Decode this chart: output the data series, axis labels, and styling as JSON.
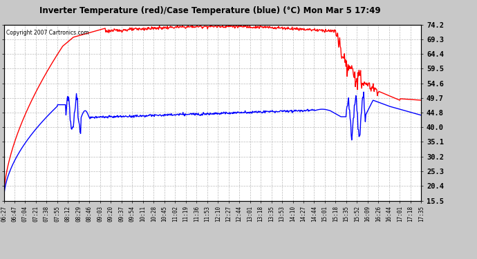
{
  "title": "Inverter Temperature (red)/Case Temperature (blue) (°C) Mon Mar 5 17:49",
  "copyright": "Copyright 2007 Cartronics.com",
  "yticks": [
    15.5,
    20.4,
    25.3,
    30.2,
    35.1,
    40.0,
    44.8,
    49.7,
    54.6,
    59.5,
    64.4,
    69.3,
    74.2
  ],
  "ylim": [
    15.5,
    74.2
  ],
  "xtick_labels": [
    "06:27",
    "06:47",
    "07:04",
    "07:21",
    "07:38",
    "07:55",
    "08:12",
    "08:29",
    "08:46",
    "09:03",
    "09:20",
    "09:37",
    "09:54",
    "10:11",
    "10:28",
    "10:45",
    "11:02",
    "11:19",
    "11:36",
    "11:53",
    "12:10",
    "12:27",
    "12:44",
    "13:01",
    "13:18",
    "13:35",
    "13:53",
    "14:10",
    "14:27",
    "14:44",
    "15:01",
    "15:18",
    "15:35",
    "15:52",
    "16:09",
    "16:26",
    "16:44",
    "17:01",
    "17:18",
    "17:35"
  ],
  "bg_color": "#c8c8c8",
  "plot_bg_color": "#ffffff",
  "grid_color": "#aaaaaa",
  "red_color": "#ff0000",
  "blue_color": "#0000ff",
  "title_color": "#000000",
  "copyright_color": "#000000",
  "line_width": 1.0
}
